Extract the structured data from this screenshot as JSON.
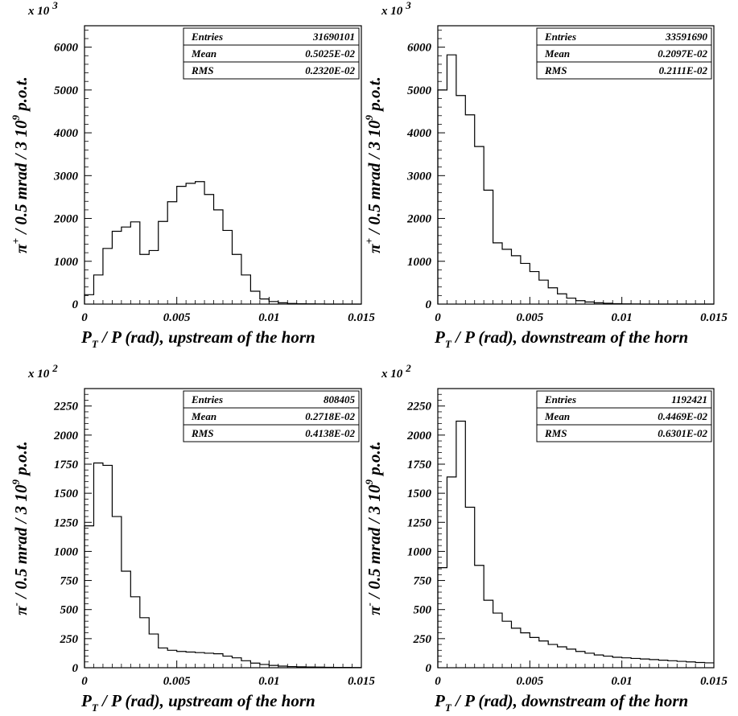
{
  "chart_data": [
    {
      "type": "histogram",
      "scale_base": "x 10",
      "scale_exp": "3",
      "xlabel_main": "P",
      "xlabel_sub": "T",
      "xlabel_rest": " / P (rad), upstream of the horn",
      "ylabel_main": "π",
      "ylabel_sup": "+",
      "ylabel_mid": " / 0.5 mrad / 3 10",
      "ylabel_exp": "9",
      "ylabel_end": " p.o.t.",
      "xlim": [
        0,
        0.015
      ],
      "ylim": [
        0,
        6500
      ],
      "xticks": [
        "0",
        "0.005",
        "0.01",
        "0.015"
      ],
      "yticks": [
        "0",
        "1000",
        "2000",
        "3000",
        "4000",
        "5000",
        "6000"
      ],
      "bin_width": 0.0005,
      "values": [
        220,
        680,
        1300,
        1700,
        1800,
        1920,
        1160,
        1250,
        1930,
        2390,
        2750,
        2820,
        2860,
        2560,
        2200,
        1720,
        1160,
        680,
        300,
        120,
        60,
        30,
        15,
        8,
        5,
        3,
        0,
        0,
        0,
        0
      ],
      "stats": [
        {
          "label": "Entries",
          "value": "31690101"
        },
        {
          "label": "Mean",
          "value": "0.5025E-02"
        },
        {
          "label": "RMS",
          "value": "0.2320E-02"
        }
      ]
    },
    {
      "type": "histogram",
      "scale_base": "x 10",
      "scale_exp": "3",
      "xlabel_main": "P",
      "xlabel_sub": "T",
      "xlabel_rest": " / P (rad), downstream of the horn",
      "ylabel_main": "π",
      "ylabel_sup": "+",
      "ylabel_mid": " / 0.5 mrad / 3 10",
      "ylabel_exp": "9",
      "ylabel_end": " p.o.t.",
      "xlim": [
        0,
        0.015
      ],
      "ylim": [
        0,
        6500
      ],
      "xticks": [
        "0",
        "0.005",
        "0.01",
        "0.015"
      ],
      "yticks": [
        "0",
        "1000",
        "2000",
        "3000",
        "4000",
        "5000",
        "6000"
      ],
      "bin_width": 0.0005,
      "values": [
        5000,
        5820,
        4870,
        4420,
        3680,
        2660,
        1430,
        1280,
        1130,
        950,
        760,
        560,
        380,
        240,
        140,
        80,
        50,
        30,
        20,
        10,
        5,
        3,
        0,
        0,
        0,
        0,
        0,
        0,
        0,
        0
      ],
      "stats": [
        {
          "label": "Entries",
          "value": "33591690"
        },
        {
          "label": "Mean",
          "value": "0.2097E-02"
        },
        {
          "label": "RMS",
          "value": "0.2111E-02"
        }
      ]
    },
    {
      "type": "histogram",
      "scale_base": "x 10",
      "scale_exp": "2",
      "xlabel_main": "P",
      "xlabel_sub": "T",
      "xlabel_rest": " / P (rad), upstream of the horn",
      "ylabel_main": "π",
      "ylabel_sup": "-",
      "ylabel_mid": " / 0.5 mrad / 3 10",
      "ylabel_exp": "9",
      "ylabel_end": " p.o.t.",
      "xlim": [
        0,
        0.015
      ],
      "ylim": [
        0,
        2400
      ],
      "xticks": [
        "0",
        "0.005",
        "0.01",
        "0.015"
      ],
      "yticks": [
        "0",
        "250",
        "500",
        "750",
        "1000",
        "1250",
        "1500",
        "1750",
        "2000",
        "2250"
      ],
      "bin_width": 0.0005,
      "values": [
        1220,
        1760,
        1740,
        1300,
        830,
        610,
        430,
        290,
        170,
        150,
        140,
        135,
        130,
        125,
        120,
        100,
        85,
        60,
        40,
        28,
        20,
        14,
        10,
        8,
        6,
        5,
        4,
        3,
        3,
        2
      ],
      "stats": [
        {
          "label": "Entries",
          "value": "808405"
        },
        {
          "label": "Mean",
          "value": "0.2718E-02"
        },
        {
          "label": "RMS",
          "value": "0.4138E-02"
        }
      ]
    },
    {
      "type": "histogram",
      "scale_base": "x 10",
      "scale_exp": "2",
      "xlabel_main": "P",
      "xlabel_sub": "T",
      "xlabel_rest": " / P (rad), downstream of the horn",
      "ylabel_main": "π",
      "ylabel_sup": "-",
      "ylabel_mid": " / 0.5 mrad / 3 10",
      "ylabel_exp": "9",
      "ylabel_end": " p.o.t.",
      "xlim": [
        0,
        0.015
      ],
      "ylim": [
        0,
        2400
      ],
      "xticks": [
        "0",
        "0.005",
        "0.01",
        "0.015"
      ],
      "yticks": [
        "0",
        "250",
        "500",
        "750",
        "1000",
        "1250",
        "1500",
        "1750",
        "2000",
        "2250"
      ],
      "bin_width": 0.0005,
      "values": [
        860,
        1640,
        2120,
        1380,
        880,
        580,
        470,
        400,
        340,
        300,
        260,
        230,
        200,
        180,
        160,
        140,
        125,
        110,
        100,
        90,
        85,
        80,
        75,
        70,
        65,
        60,
        55,
        50,
        45,
        42
      ],
      "stats": [
        {
          "label": "Entries",
          "value": "1192421"
        },
        {
          "label": "Mean",
          "value": "0.4469E-02"
        },
        {
          "label": "RMS",
          "value": "0.6301E-02"
        }
      ]
    }
  ]
}
